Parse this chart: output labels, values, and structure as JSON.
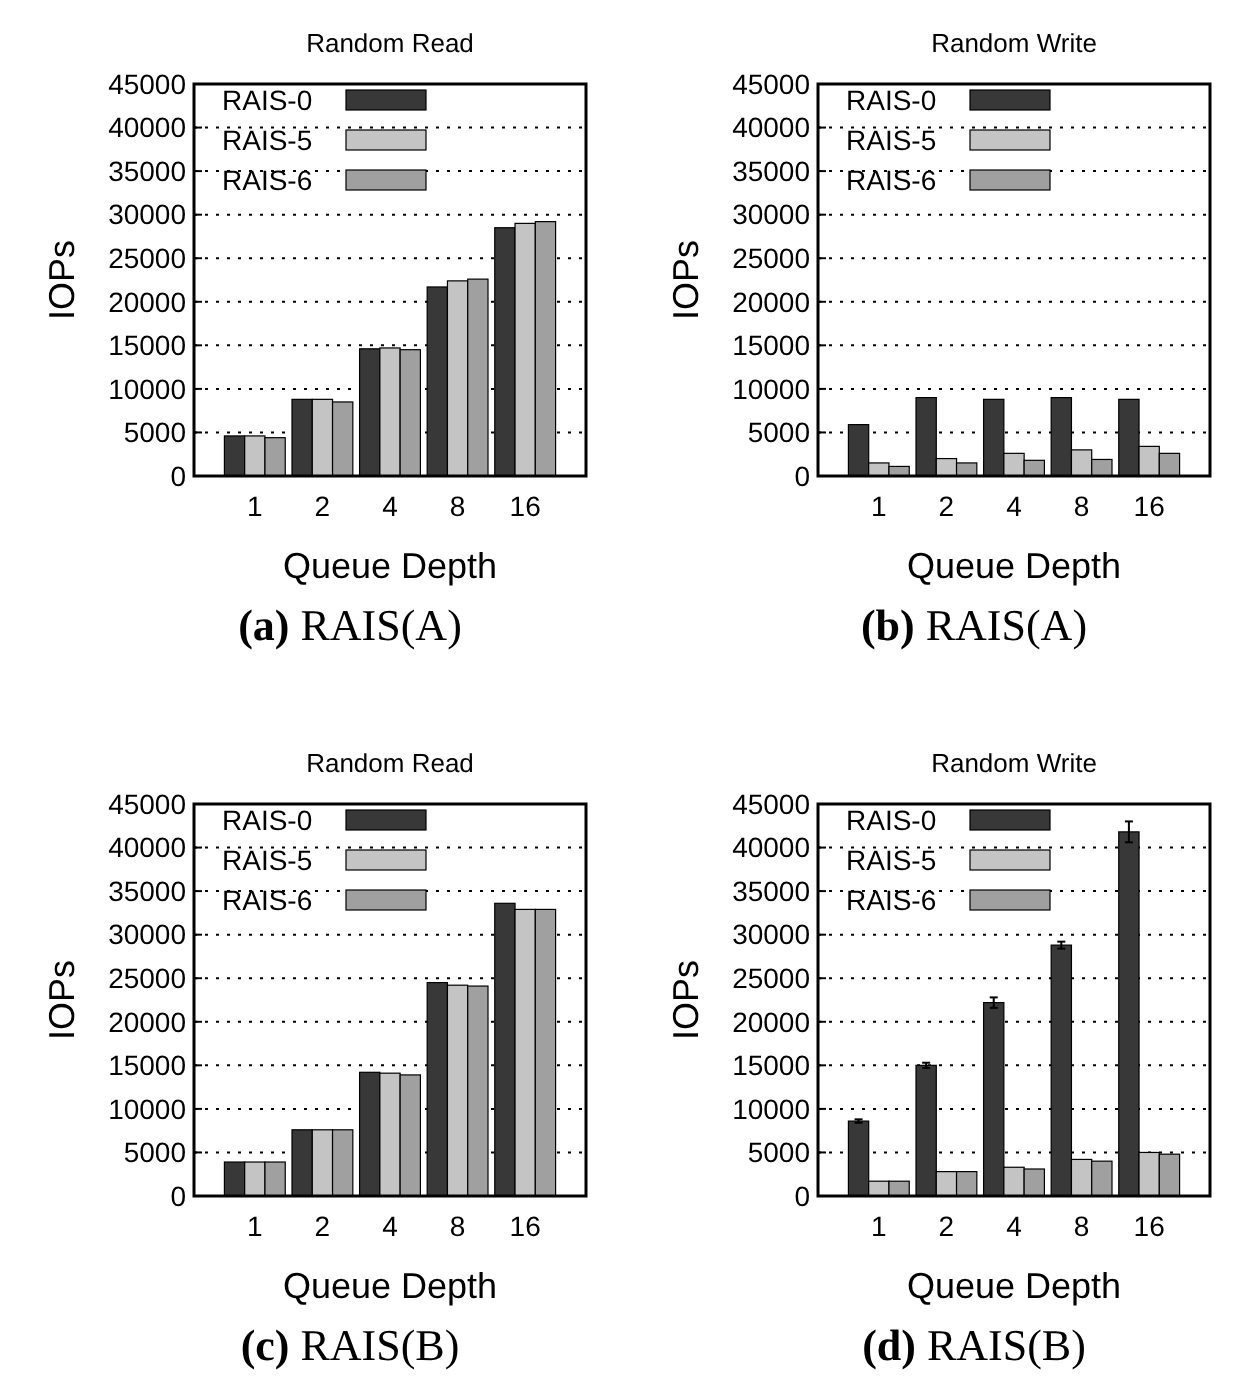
{
  "chart_data": [
    {
      "type": "bar",
      "title": "Random Read",
      "xlabel": "Queue Depth",
      "ylabel": "IOPs",
      "annotations": [
        "(a) RAIS(A)"
      ],
      "categories": [
        "1",
        "2",
        "4",
        "8",
        "16"
      ],
      "ylim": [
        0,
        45000
      ],
      "yticks": [
        0,
        5000,
        10000,
        15000,
        20000,
        25000,
        30000,
        35000,
        40000,
        45000
      ],
      "grid": "y",
      "legend": "top left",
      "series": [
        {
          "name": "RAIS-0",
          "color": "#383838",
          "values": [
            4600,
            8800,
            14600,
            21700,
            28500
          ]
        },
        {
          "name": "RAIS-5",
          "color": "#c4c4c4",
          "values": [
            4600,
            8800,
            14700,
            22400,
            29000
          ]
        },
        {
          "name": "RAIS-6",
          "color": "#a0a0a0",
          "values": [
            4400,
            8500,
            14500,
            22600,
            29200
          ]
        }
      ]
    },
    {
      "type": "bar",
      "title": "Random Write",
      "xlabel": "Queue Depth",
      "ylabel": "IOPs",
      "annotations": [
        "(b) RAIS(A)"
      ],
      "categories": [
        "1",
        "2",
        "4",
        "8",
        "16"
      ],
      "ylim": [
        0,
        45000
      ],
      "yticks": [
        0,
        5000,
        10000,
        15000,
        20000,
        25000,
        30000,
        35000,
        40000,
        45000
      ],
      "grid": "y",
      "legend": "top left",
      "series": [
        {
          "name": "RAIS-0",
          "color": "#383838",
          "values": [
            5900,
            9000,
            8800,
            9000,
            8800
          ]
        },
        {
          "name": "RAIS-5",
          "color": "#c4c4c4",
          "values": [
            1500,
            2000,
            2600,
            3000,
            3400
          ]
        },
        {
          "name": "RAIS-6",
          "color": "#a0a0a0",
          "values": [
            1100,
            1500,
            1800,
            1900,
            2600
          ]
        }
      ]
    },
    {
      "type": "bar",
      "title": "Random Read",
      "xlabel": "Queue Depth",
      "ylabel": "IOPs",
      "annotations": [
        "(c) RAIS(B)"
      ],
      "categories": [
        "1",
        "2",
        "4",
        "8",
        "16"
      ],
      "ylim": [
        0,
        45000
      ],
      "yticks": [
        0,
        5000,
        10000,
        15000,
        20000,
        25000,
        30000,
        35000,
        40000,
        45000
      ],
      "grid": "y",
      "legend": "top left",
      "series": [
        {
          "name": "RAIS-0",
          "color": "#383838",
          "values": [
            3900,
            7600,
            14200,
            24500,
            33600
          ]
        },
        {
          "name": "RAIS-5",
          "color": "#c4c4c4",
          "values": [
            3900,
            7600,
            14100,
            24200,
            32900
          ]
        },
        {
          "name": "RAIS-6",
          "color": "#a0a0a0",
          "values": [
            3900,
            7600,
            13900,
            24100,
            32900
          ]
        }
      ]
    },
    {
      "type": "bar",
      "title": "Random Write",
      "xlabel": "Queue Depth",
      "ylabel": "IOPs",
      "annotations": [
        "(d) RAIS(B)"
      ],
      "categories": [
        "1",
        "2",
        "4",
        "8",
        "16"
      ],
      "ylim": [
        0,
        45000
      ],
      "yticks": [
        0,
        5000,
        10000,
        15000,
        20000,
        25000,
        30000,
        35000,
        40000,
        45000
      ],
      "grid": "y",
      "legend": "top left",
      "series": [
        {
          "name": "RAIS-0",
          "color": "#383838",
          "values": [
            8600,
            15000,
            22200,
            28800,
            41800
          ],
          "errors": [
            200,
            300,
            600,
            400,
            1200
          ]
        },
        {
          "name": "RAIS-5",
          "color": "#c4c4c4",
          "values": [
            1700,
            2800,
            3300,
            4200,
            5000
          ]
        },
        {
          "name": "RAIS-6",
          "color": "#a0a0a0",
          "values": [
            1700,
            2800,
            3100,
            4000,
            4800
          ]
        }
      ]
    }
  ]
}
